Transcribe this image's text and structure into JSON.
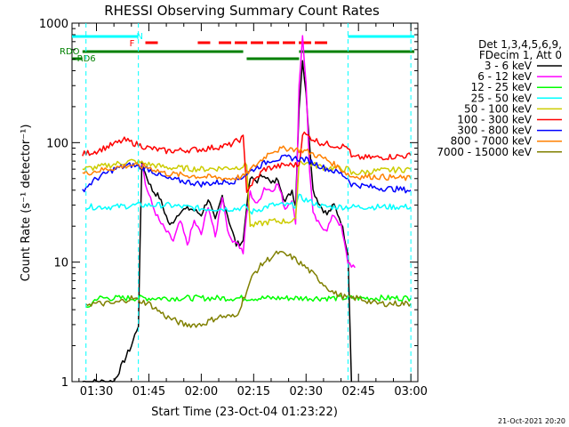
{
  "chart_data": {
    "type": "line",
    "title": "RHESSI Observing Summary Count Rates",
    "xlabel": "Start Time (23-Oct-04 01:23:22)",
    "ylabel": "Count Rate (s⁻¹ detector⁻¹)",
    "yscale": "log",
    "ylim": [
      1,
      1000
    ],
    "xlim": [
      "01:23",
      "03:02"
    ],
    "x_ticks": [
      "01:30",
      "01:45",
      "02:00",
      "02:15",
      "02:30",
      "02:45",
      "03:00"
    ],
    "y_ticks": [
      "1",
      "10",
      "100",
      "1000"
    ],
    "legend_header": [
      "Det 1,3,4,5,6,9,",
      "FDecim 1, Att 0"
    ],
    "legend_placement": "right",
    "footer_date": "21-Oct-2021 20:20",
    "flags": [
      {
        "name": "N",
        "color": "#00ffff",
        "segments": [
          [
            "01:23",
            "01:42"
          ],
          [
            "02:42",
            "03:01"
          ]
        ]
      },
      {
        "name": "F",
        "color": "#ff0000",
        "segments": [
          [
            "01:44",
            "01:48"
          ],
          [
            "01:59",
            "02:03"
          ],
          [
            "02:05",
            "02:37"
          ]
        ]
      },
      {
        "name": "RDO",
        "color": "#008000",
        "segments": [
          [
            "01:26",
            "02:12"
          ],
          [
            "02:28",
            "03:01"
          ]
        ]
      },
      {
        "name": "RD6",
        "color": "#008000",
        "segments": [
          [
            "01:23",
            "01:26"
          ],
          [
            "02:13",
            "02:28"
          ]
        ]
      }
    ],
    "vlines": [
      "01:27",
      "01:42",
      "02:42",
      "03:00"
    ],
    "series": [
      {
        "name": "3 - 6 keV",
        "color": "#000000",
        "x": [
          "01:26",
          "01:27",
          "01:30",
          "01:35",
          "01:40",
          "01:42",
          "01:43",
          "01:44",
          "01:46",
          "01:48",
          "01:51",
          "01:54",
          "01:57",
          "02:00",
          "02:02",
          "02:04",
          "02:06",
          "02:08",
          "02:10",
          "02:12",
          "02:13",
          "02:14",
          "02:16",
          "02:18",
          "02:20",
          "02:22",
          "02:24",
          "02:26",
          "02:27",
          "02:28",
          "02:29",
          "02:30",
          "02:31",
          "02:32",
          "02:34",
          "02:36",
          "02:38",
          "02:40",
          "02:42",
          "02:43"
        ],
        "y": [
          1,
          1,
          1,
          1,
          2,
          3,
          70,
          55,
          40,
          35,
          20,
          27,
          28,
          25,
          34,
          22,
          36,
          22,
          14,
          15,
          30,
          50,
          48,
          55,
          45,
          50,
          32,
          40,
          30,
          200,
          500,
          250,
          100,
          40,
          30,
          25,
          30,
          22,
          12,
          1
        ]
      },
      {
        "name": "6 - 12 keV",
        "color": "#ff00ff",
        "x": [
          "01:43",
          "01:44",
          "01:46",
          "01:48",
          "01:50",
          "01:52",
          "01:54",
          "01:56",
          "01:58",
          "02:00",
          "02:02",
          "02:04",
          "02:06",
          "02:08",
          "02:10",
          "02:12",
          "02:13",
          "02:14",
          "02:16",
          "02:18",
          "02:20",
          "02:22",
          "02:24",
          "02:26",
          "02:27",
          "02:28",
          "02:29",
          "02:30",
          "02:31",
          "02:32",
          "02:34",
          "02:36",
          "02:38",
          "02:40",
          "02:42",
          "02:44"
        ],
        "y": [
          70,
          45,
          30,
          22,
          18,
          15,
          22,
          14,
          22,
          17,
          30,
          16,
          36,
          16,
          15,
          12,
          25,
          38,
          30,
          42,
          40,
          45,
          28,
          34,
          20,
          300,
          800,
          300,
          60,
          25,
          20,
          19,
          25,
          20,
          10,
          9
        ]
      },
      {
        "name": "12 - 25 keV",
        "color": "#00ff00",
        "x": [
          "01:27",
          "01:30",
          "01:35",
          "01:40",
          "01:45",
          "01:50",
          "01:55",
          "02:00",
          "02:05",
          "02:10",
          "02:15",
          "02:20",
          "02:25",
          "02:30",
          "02:35",
          "02:40",
          "02:45",
          "02:50",
          "02:55",
          "03:00"
        ],
        "y": [
          4,
          5,
          5,
          5,
          5,
          5,
          5,
          5,
          5,
          5,
          5,
          5,
          5,
          5,
          5,
          5,
          5,
          5,
          5,
          5
        ]
      },
      {
        "name": "25 - 50 keV",
        "color": "#00ffff",
        "x": [
          "01:27",
          "01:35",
          "01:42",
          "01:50",
          "02:00",
          "02:10",
          "02:13",
          "02:14",
          "02:20",
          "02:27",
          "02:28",
          "02:35",
          "02:42",
          "02:43",
          "02:50",
          "03:00"
        ],
        "y": [
          29,
          29,
          30,
          30,
          28,
          28,
          29,
          26,
          30,
          30,
          35,
          29,
          29,
          29,
          29,
          29
        ]
      },
      {
        "name": "50 - 100 keV",
        "color": "#cccc00",
        "x": [
          "01:26",
          "01:30",
          "01:40",
          "01:50",
          "02:00",
          "02:10",
          "02:13",
          "02:14",
          "02:20",
          "02:27",
          "02:28",
          "02:35",
          "02:42",
          "02:43",
          "02:50",
          "03:00"
        ],
        "y": [
          60,
          62,
          70,
          62,
          60,
          62,
          65,
          20,
          22,
          22,
          70,
          62,
          60,
          55,
          58,
          60
        ]
      },
      {
        "name": "100 - 300 keV",
        "color": "#ff0000",
        "x": [
          "01:26",
          "01:30",
          "01:38",
          "01:45",
          "01:50",
          "02:00",
          "02:08",
          "02:12",
          "02:13",
          "02:18",
          "02:24",
          "02:28",
          "02:29",
          "02:34",
          "02:38",
          "02:42",
          "02:43",
          "02:50",
          "03:00"
        ],
        "y": [
          80,
          85,
          105,
          90,
          85,
          88,
          95,
          110,
          40,
          60,
          65,
          65,
          120,
          100,
          95,
          92,
          75,
          75,
          78
        ]
      },
      {
        "name": "300 - 800 keV",
        "color": "#0000ff",
        "x": [
          "01:26",
          "01:30",
          "01:35",
          "01:40",
          "01:45",
          "01:50",
          "02:00",
          "02:10",
          "02:15",
          "02:20",
          "02:25",
          "02:30",
          "02:35",
          "02:40",
          "02:42",
          "02:43",
          "02:50",
          "03:00"
        ],
        "y": [
          40,
          50,
          60,
          65,
          60,
          50,
          45,
          48,
          60,
          72,
          75,
          72,
          62,
          55,
          50,
          45,
          42,
          40
        ]
      },
      {
        "name": "800 - 7000 keV",
        "color": "#ff8000",
        "x": [
          "01:26",
          "01:30",
          "01:40",
          "01:45",
          "01:50",
          "02:00",
          "02:08",
          "02:12",
          "02:20",
          "02:25",
          "02:30",
          "02:36",
          "02:40",
          "02:43",
          "02:50",
          "03:00"
        ],
        "y": [
          55,
          58,
          65,
          62,
          55,
          52,
          50,
          52,
          85,
          90,
          85,
          72,
          60,
          52,
          52,
          50
        ]
      },
      {
        "name": "7000 - 15000 keV",
        "color": "#808000",
        "x": [
          "01:27",
          "01:30",
          "01:35",
          "01:40",
          "01:45",
          "01:50",
          "01:55",
          "02:00",
          "02:05",
          "02:10",
          "02:15",
          "02:18",
          "02:22",
          "02:26",
          "02:30",
          "02:34",
          "02:38",
          "02:42",
          "02:45",
          "02:50",
          "02:55",
          "03:00"
        ],
        "y": [
          4.5,
          4.5,
          4.5,
          5,
          4.5,
          3.5,
          3,
          3,
          3.5,
          3.5,
          8,
          10,
          12,
          11,
          9,
          7,
          5.5,
          5,
          5,
          4.5,
          4.5,
          4.5
        ]
      }
    ]
  }
}
